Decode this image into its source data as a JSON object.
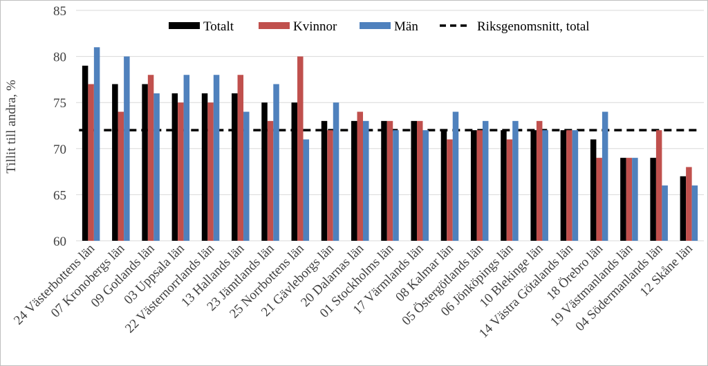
{
  "chart_data": {
    "type": "bar",
    "title": "",
    "xlabel": "",
    "ylabel": "Tillit till andra, %",
    "ylim": [
      60,
      85
    ],
    "yticks": [
      60,
      65,
      70,
      75,
      80,
      85
    ],
    "grid": "horizontal",
    "legend_position": "top",
    "categories": [
      "24 Västerbottens län",
      "07 Kronobergs län",
      "09 Gotlands län",
      "03 Uppsala län",
      "22 Västernorrlands län",
      "13 Hallands län",
      "23 Jämtlands län",
      "25 Norrbottens län",
      "21 Gävleborgs län",
      "20 Dalarnas län",
      "01 Stockholms län",
      "17 Värmlands län",
      "08 Kalmar län",
      "05 Östergötlands län",
      "06 Jönköpings län",
      "10 Blekinge län",
      "14 Västra Götalands län",
      "18 Örebro län",
      "19 Västmanlands län",
      "04 Södermanlands län",
      "12 Skåne län"
    ],
    "series": [
      {
        "name": "Totalt",
        "color": "#000000",
        "values": [
          79,
          77,
          77,
          76,
          76,
          76,
          75,
          75,
          73,
          73,
          73,
          73,
          72,
          72,
          72,
          72,
          72,
          71,
          69,
          69,
          67
        ]
      },
      {
        "name": "Kvinnor",
        "color": "#c0504d",
        "values": [
          77,
          74,
          78,
          75,
          75,
          78,
          73,
          80,
          72,
          74,
          73,
          73,
          71,
          72,
          71,
          73,
          72,
          69,
          69,
          72,
          68
        ]
      },
      {
        "name": "Män",
        "color": "#4f81bd",
        "values": [
          81,
          80,
          76,
          78,
          78,
          74,
          77,
          71,
          75,
          73,
          72,
          72,
          74,
          73,
          73,
          72,
          72,
          74,
          69,
          66,
          66
        ]
      }
    ],
    "reference_line": {
      "name": "Riksgenomsnitt, total",
      "value": 72,
      "style": "dashed",
      "color": "#000000"
    }
  }
}
